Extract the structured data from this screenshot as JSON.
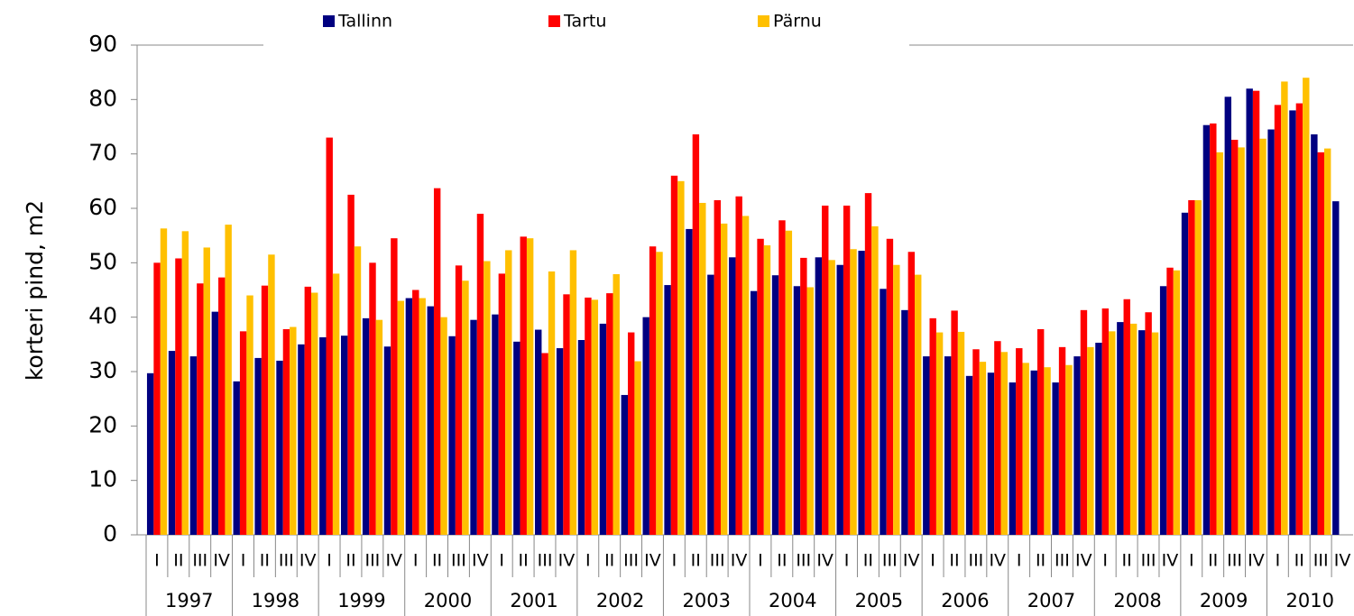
{
  "chart_data": {
    "type": "bar",
    "y_label": "korteri pind, m2",
    "categories": [
      "I",
      "II",
      "III",
      "IV",
      "I",
      "II",
      "III",
      "IV",
      "I",
      "II",
      "III",
      "IV",
      "I",
      "II",
      "III",
      "IV",
      "I",
      "II",
      "III",
      "IV",
      "I",
      "II",
      "III",
      "IV",
      "I",
      "II",
      "III",
      "IV",
      "I",
      "II",
      "III",
      "IV",
      "I",
      "II",
      "III",
      "IV",
      "I",
      "II",
      "III",
      "IV",
      "I",
      "II",
      "III",
      "IV",
      "I",
      "II",
      "III",
      "IV",
      "I",
      "II",
      "III",
      "IV",
      "I",
      "II",
      "III",
      "IV"
    ],
    "years": [
      "1997",
      "1998",
      "1999",
      "2000",
      "2001",
      "2002",
      "2003",
      "2004",
      "2005",
      "2006",
      "2007",
      "2008",
      "2009",
      "2010"
    ],
    "series": [
      {
        "name": "Tallinn",
        "color": "#000080",
        "values": [
          29.7,
          33.8,
          32.8,
          41,
          28.2,
          32.5,
          32,
          35,
          36.3,
          36.6,
          39.8,
          34.6,
          43.5,
          42,
          36.5,
          39.5,
          40.5,
          35.5,
          37.7,
          34.3,
          35.8,
          38.8,
          25.7,
          40,
          45.9,
          56.2,
          47.8,
          51,
          44.8,
          47.7,
          45.7,
          51,
          49.6,
          52.2,
          45.2,
          41.3,
          32.8,
          32.8,
          29.2,
          29.8,
          28,
          30.2,
          28,
          32.8,
          35.3,
          39.1,
          37.6,
          45.7,
          59.2,
          75.3,
          80.5,
          82,
          74.5,
          78,
          73.6,
          61.3
        ]
      },
      {
        "name": "Tartu",
        "color": "#ff0000",
        "values": [
          50,
          50.8,
          46.2,
          47.3,
          37.4,
          45.8,
          37.8,
          45.6,
          73,
          62.5,
          50,
          54.5,
          45,
          63.7,
          49.5,
          59,
          48,
          54.8,
          33.4,
          44.2,
          43.6,
          44.4,
          37.2,
          53,
          66,
          73.6,
          61.5,
          62.2,
          54.4,
          57.8,
          50.9,
          60.5,
          60.5,
          62.8,
          54.4,
          52,
          39.8,
          41.2,
          34.1,
          35.6,
          34.3,
          37.8,
          34.5,
          41.3,
          41.6,
          43.3,
          40.9,
          49.1,
          61.5,
          75.6,
          72.6,
          81.6,
          79,
          79.3,
          70.3,
          null
        ]
      },
      {
        "name": "Pärnu",
        "color": "#ffc000",
        "values": [
          56.3,
          55.8,
          52.8,
          57,
          44,
          51.5,
          38.2,
          44.5,
          48,
          53,
          39.5,
          43,
          43.5,
          40,
          46.7,
          50.3,
          52.3,
          54.5,
          48.4,
          52.3,
          43.2,
          47.9,
          31.9,
          52,
          65,
          61,
          57.2,
          58.6,
          53.2,
          55.9,
          45.5,
          50.5,
          52.5,
          56.7,
          49.6,
          47.8,
          37.2,
          37.3,
          31.8,
          33.6,
          31.6,
          30.8,
          31.2,
          34.5,
          37.4,
          38.8,
          37.2,
          48.6,
          61.5,
          70.3,
          71.2,
          72.8,
          83.3,
          84,
          71,
          null
        ]
      }
    ],
    "ylim": [
      0,
      90
    ],
    "yticks": [
      0,
      10,
      20,
      30,
      40,
      50,
      60,
      70,
      80,
      90
    ],
    "legend": "top"
  }
}
